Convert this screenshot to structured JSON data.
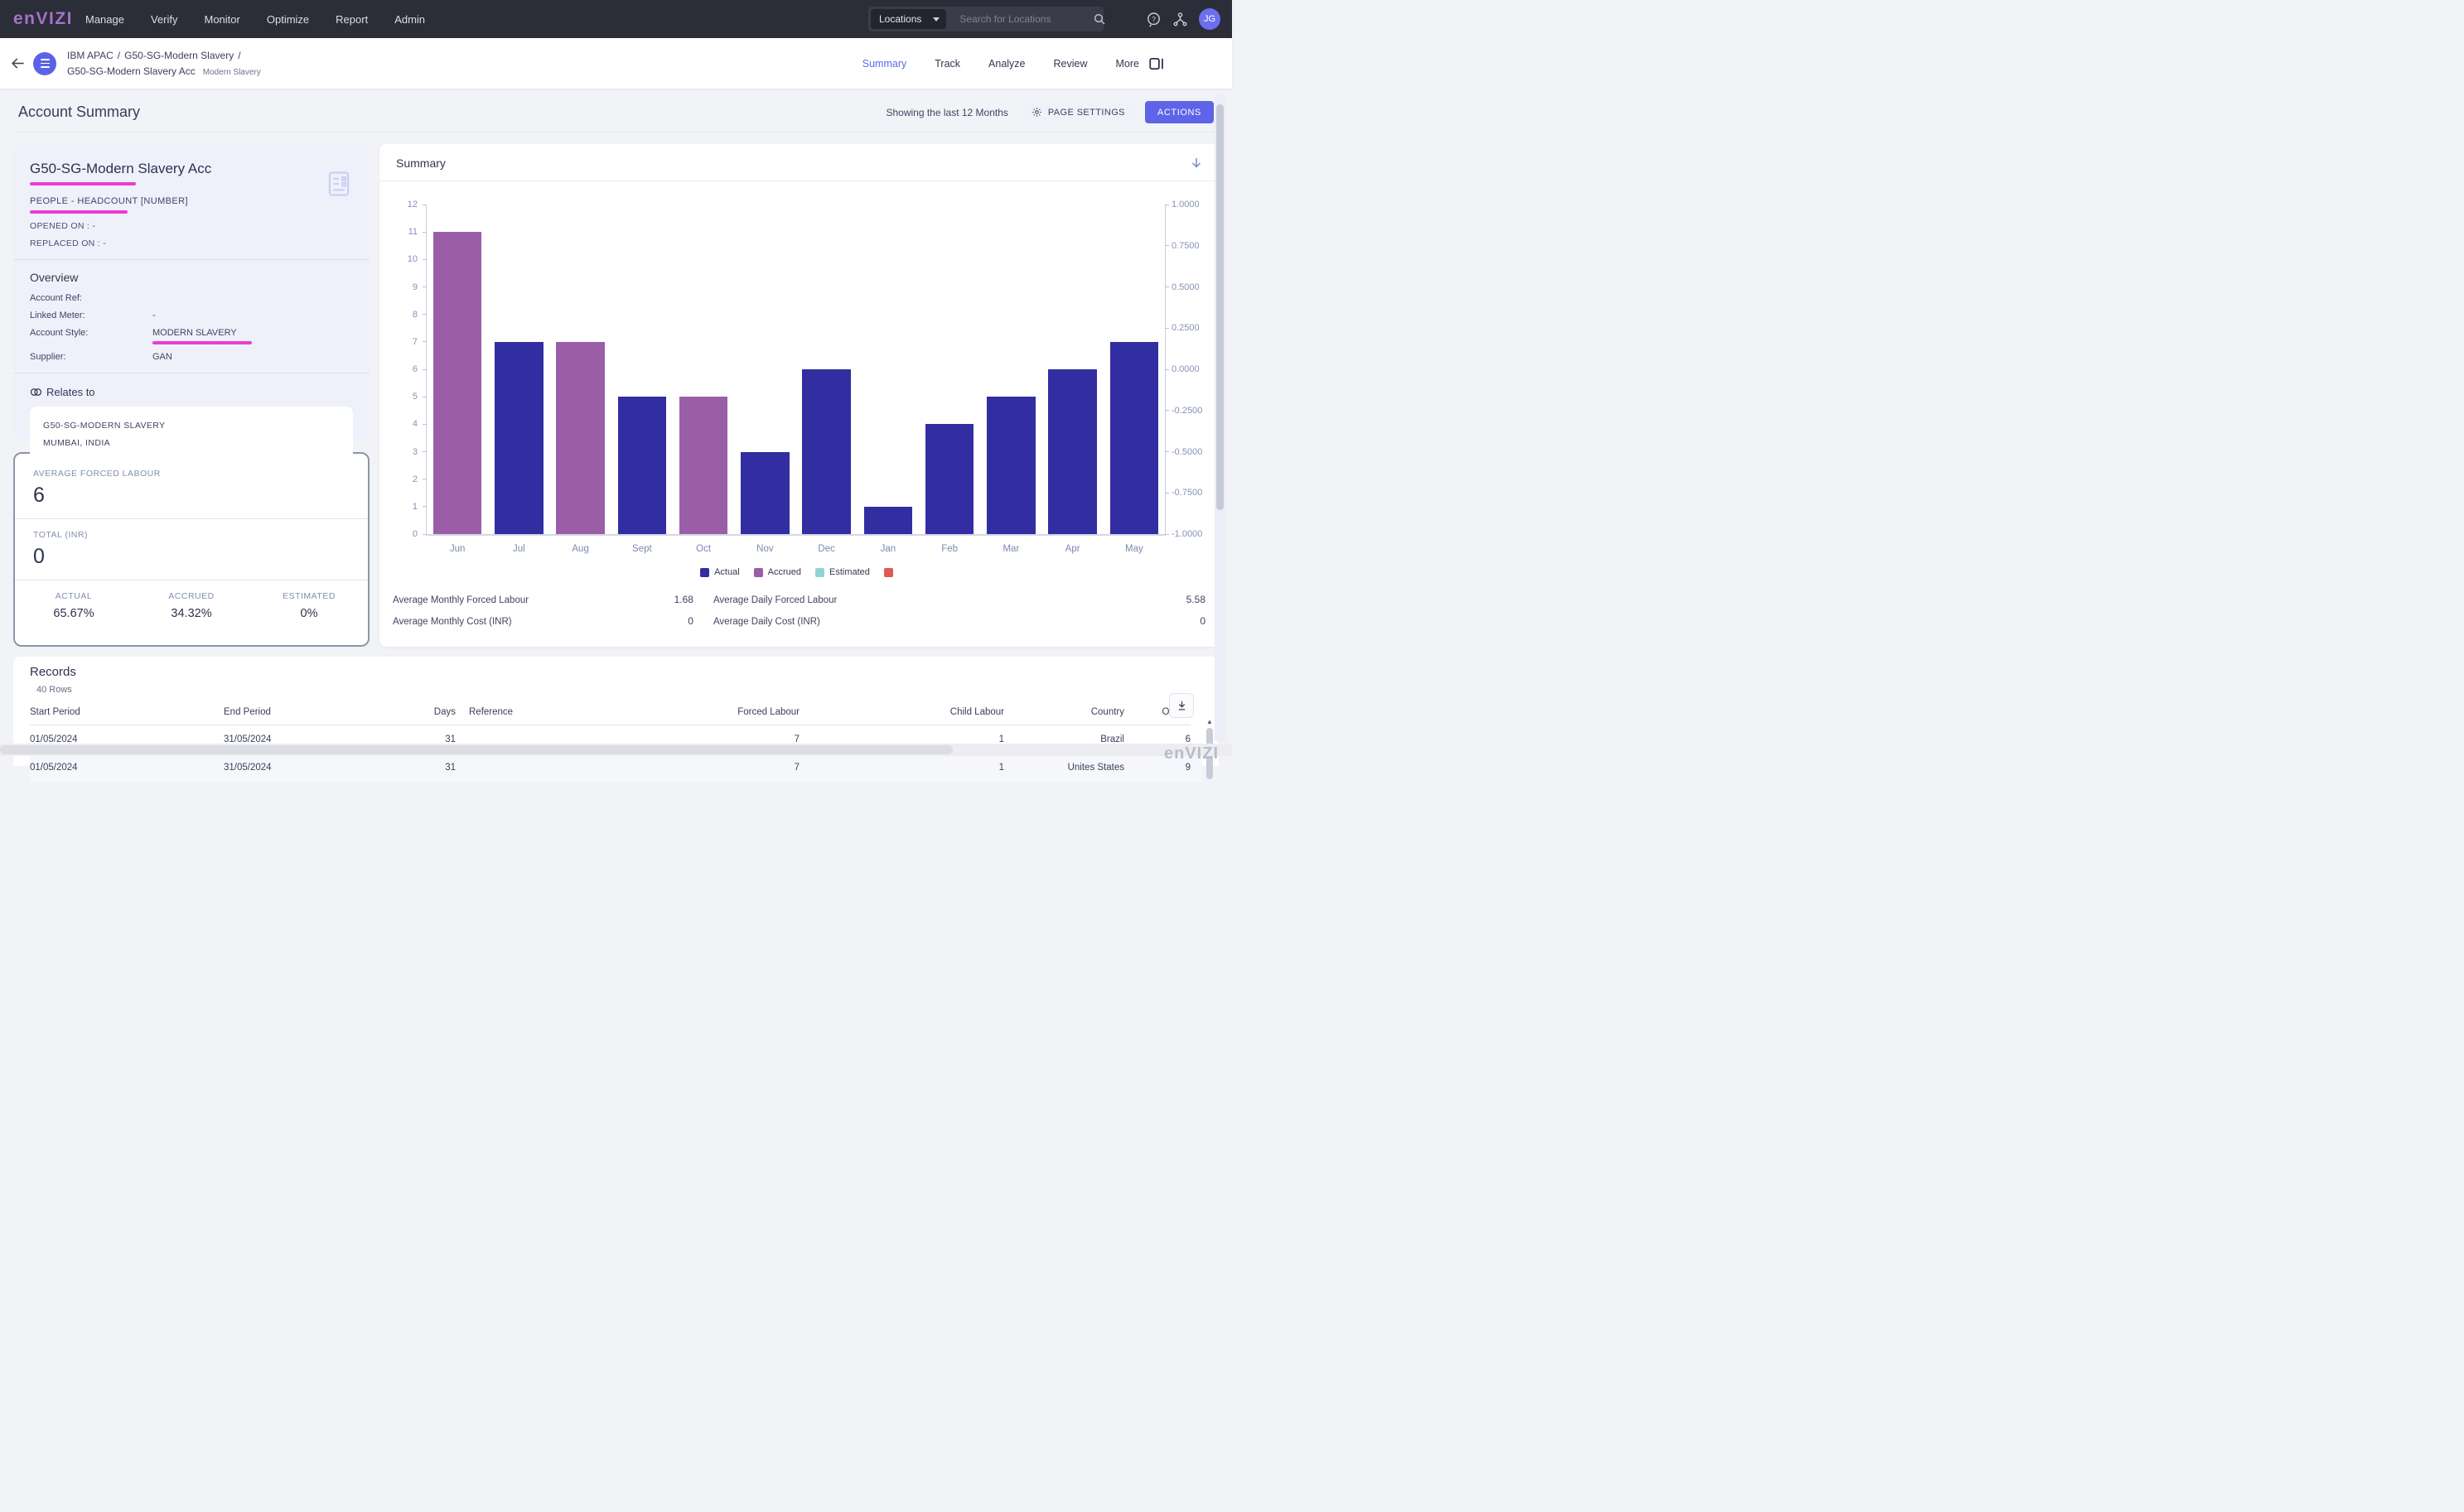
{
  "navbar": {
    "logo": "enVIZI",
    "menu": [
      "Manage",
      "Verify",
      "Monitor",
      "Optimize",
      "Report",
      "Admin"
    ],
    "search": {
      "scope": "Locations",
      "placeholder": "Search for Locations"
    },
    "avatar": "JG"
  },
  "breadcrumb": {
    "line1": [
      "IBM APAC",
      "G50-SG-Modern Slavery"
    ],
    "line2": "G50-SG-Modern Slavery Acc",
    "tag": "Modern Slavery"
  },
  "tabs": [
    {
      "label": "Summary",
      "active": true
    },
    {
      "label": "Track",
      "active": false
    },
    {
      "label": "Analyze",
      "active": false
    },
    {
      "label": "Review",
      "active": false
    },
    {
      "label": "More",
      "active": false
    }
  ],
  "page": {
    "title": "Account Summary",
    "showing": "Showing the last 12 Months",
    "page_settings_label": "PAGE SETTINGS",
    "actions_label": "ACTIONS"
  },
  "account_card": {
    "title": "G50-SG-Modern Slavery Acc",
    "subtitle": "PEOPLE - HEADCOUNT [NUMBER]",
    "opened_on": "OPENED ON : -",
    "replaced_on": "REPLACED ON : -",
    "overview_title": "Overview",
    "fields": [
      {
        "label": "Account Ref:",
        "value": "",
        "underline": false
      },
      {
        "label": "Linked Meter:",
        "value": "-",
        "underline": false
      },
      {
        "label": "Account Style:",
        "value": "MODERN SLAVERY",
        "underline": true
      },
      {
        "label": "Supplier:",
        "value": "GAN",
        "underline": false
      }
    ],
    "relates_to_title": "Relates to",
    "relates_to": [
      "G50-SG-MODERN SLAVERY",
      "MUMBAI, INDIA"
    ]
  },
  "stats_card": {
    "metrics": [
      {
        "label": "AVERAGE FORCED LABOUR",
        "value": "6"
      },
      {
        "label": "TOTAL (INR)",
        "value": "0"
      }
    ],
    "percents": [
      {
        "label": "ACTUAL",
        "value": "65.67%"
      },
      {
        "label": "ACCRUED",
        "value": "34.32%"
      },
      {
        "label": "ESTIMATED",
        "value": "0%"
      }
    ]
  },
  "summary_panel": {
    "title": "Summary",
    "stats": [
      {
        "label": "Average Monthly Forced Labour",
        "value": "1.68"
      },
      {
        "label": "Average Daily Forced Labour",
        "value": "5.58"
      },
      {
        "label": "Average Monthly Cost (INR)",
        "value": "0"
      },
      {
        "label": "Average Daily Cost (INR)",
        "value": "0"
      }
    ]
  },
  "chart_data": {
    "type": "bar",
    "title": "Summary",
    "categories": [
      "Jun",
      "Jul",
      "Aug",
      "Sept",
      "Oct",
      "Nov",
      "Dec",
      "Jan",
      "Feb",
      "Mar",
      "Apr",
      "May"
    ],
    "values": [
      11,
      7,
      7,
      5,
      5,
      3,
      6,
      1,
      4,
      5,
      6,
      7
    ],
    "value_series": [
      "Accrued",
      "Actual",
      "Accrued",
      "Actual",
      "Accrued",
      "Actual",
      "Actual",
      "Actual",
      "Actual",
      "Actual",
      "Actual",
      "Actual"
    ],
    "left_axis": {
      "min": 0,
      "max": 12,
      "ticks": [
        0,
        1,
        2,
        3,
        4,
        5,
        6,
        7,
        8,
        9,
        10,
        11,
        12
      ]
    },
    "right_axis": {
      "ticks": [
        "1.0000",
        "0.7500",
        "0.5000",
        "0.2500",
        "0.0000",
        "-0.2500",
        "-0.5000",
        "-0.7500",
        "-1.0000"
      ]
    },
    "legend": [
      {
        "label": "Actual",
        "color": "#322da0"
      },
      {
        "label": "Accrued",
        "color": "#9a5ea9"
      },
      {
        "label": "Estimated",
        "color": "#90d5d3"
      },
      {
        "label": "",
        "color": "#e25850"
      }
    ],
    "grid": false,
    "legend_position": "bottom-center",
    "xlabel": "",
    "ylabel": ""
  },
  "records": {
    "title": "Records",
    "rows_count": "40 Rows",
    "columns": [
      "Start Period",
      "End Period",
      "Days",
      "Reference",
      "Forced Labour",
      "Child Labour",
      "Country",
      "Others"
    ],
    "rows": [
      [
        "01/05/2024",
        "31/05/2024",
        "31",
        "",
        "7",
        "1",
        "Brazil",
        "6"
      ],
      [
        "01/05/2024",
        "31/05/2024",
        "31",
        "",
        "7",
        "1",
        "Unites States",
        "9"
      ]
    ]
  },
  "watermark": "enVIZI",
  "colors": {
    "accent": "#5d64e8",
    "magenta_underline": "#eb3cd2",
    "navbar_bg": "#2b2d38",
    "actual": "#322da0",
    "accrued": "#9a5ea9",
    "estimated": "#90d5d3",
    "red_legend": "#e25850"
  }
}
